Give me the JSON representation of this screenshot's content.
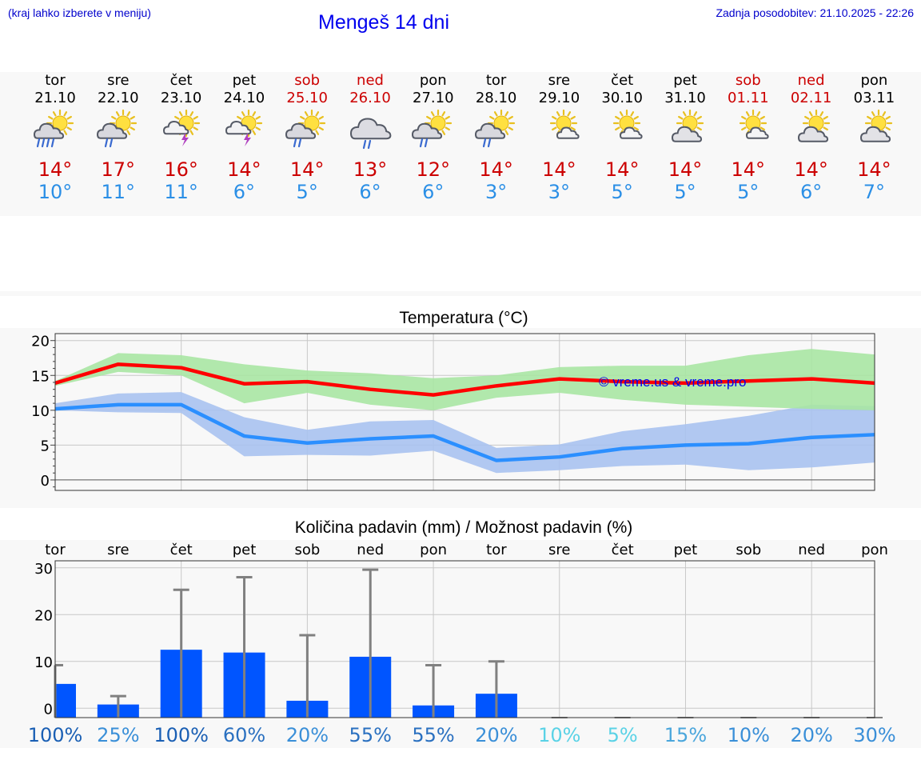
{
  "header": {
    "hint": "(kraj lahko izberete v meniju)",
    "title": "Mengeš 14 dni",
    "updated": "Zadnja posodobitev: 21.10.2025 - 22:26"
  },
  "days": [
    {
      "name": "tor",
      "date": "21.10",
      "weekend": false,
      "icon": "sun-cloud-heavy-rain-icon",
      "max": "14°",
      "min": "10°"
    },
    {
      "name": "sre",
      "date": "22.10",
      "weekend": false,
      "icon": "sun-cloud-rain-icon",
      "max": "17°",
      "min": "11°"
    },
    {
      "name": "čet",
      "date": "23.10",
      "weekend": false,
      "icon": "sun-thunderstorm-icon",
      "max": "16°",
      "min": "11°"
    },
    {
      "name": "pet",
      "date": "24.10",
      "weekend": false,
      "icon": "sun-thunderstorm-icon",
      "max": "14°",
      "min": "6°"
    },
    {
      "name": "sob",
      "date": "25.10",
      "weekend": true,
      "icon": "sun-cloud-rain-icon",
      "max": "14°",
      "min": "5°"
    },
    {
      "name": "ned",
      "date": "26.10",
      "weekend": true,
      "icon": "cloud-rain-icon",
      "max": "13°",
      "min": "6°"
    },
    {
      "name": "pon",
      "date": "27.10",
      "weekend": false,
      "icon": "sun-cloud-rain-icon",
      "max": "12°",
      "min": "6°"
    },
    {
      "name": "tor",
      "date": "28.10",
      "weekend": false,
      "icon": "sun-cloud-rain-icon",
      "max": "14°",
      "min": "3°"
    },
    {
      "name": "sre",
      "date": "29.10",
      "weekend": false,
      "icon": "sun-small-cloud-icon",
      "max": "14°",
      "min": "3°"
    },
    {
      "name": "čet",
      "date": "30.10",
      "weekend": false,
      "icon": "sun-small-cloud-icon",
      "max": "14°",
      "min": "5°"
    },
    {
      "name": "pet",
      "date": "31.10",
      "weekend": false,
      "icon": "sun-cloud-icon",
      "max": "14°",
      "min": "5°"
    },
    {
      "name": "sob",
      "date": "01.11",
      "weekend": true,
      "icon": "sun-small-cloud-icon",
      "max": "14°",
      "min": "5°"
    },
    {
      "name": "ned",
      "date": "02.11",
      "weekend": true,
      "icon": "sun-cloud-icon",
      "max": "14°",
      "min": "6°"
    },
    {
      "name": "pon",
      "date": "03.11",
      "weekend": false,
      "icon": "sun-cloud-icon",
      "max": "14°",
      "min": "7°"
    }
  ],
  "watermark": "© vreme.us & vreme.pro",
  "colors": {
    "max_line": "#ff0000",
    "max_band": "#a9e6a3",
    "min_line": "#2b8fff",
    "min_band": "#a8c2f0",
    "bar": "#0055ff",
    "whisker": "#808080",
    "weekend_text": "#cc0000"
  },
  "chart_data": [
    {
      "type": "line",
      "title": "Temperatura (°C)",
      "ylim": [
        -1.5,
        21
      ],
      "yticks": [
        0,
        5,
        10,
        15,
        20
      ],
      "grid": true,
      "x": [
        0,
        1,
        2,
        3,
        4,
        5,
        6,
        7,
        8,
        9,
        10,
        11,
        12,
        13
      ],
      "series": [
        {
          "values": [
            13.9,
            16.6,
            16.1,
            13.8,
            14.1,
            13.0,
            12.2,
            13.5,
            14.5,
            14.1,
            13.9,
            14.2,
            14.5,
            13.9
          ],
          "band_low": [
            13.5,
            15.5,
            15.0,
            11.0,
            12.5,
            10.8,
            10.0,
            11.8,
            12.5,
            11.5,
            10.8,
            10.5,
            10.2,
            10.0
          ],
          "band_high": [
            14.2,
            18.2,
            17.9,
            16.6,
            15.7,
            15.3,
            14.6,
            15.0,
            16.2,
            16.4,
            16.4,
            17.9,
            18.8,
            18.0
          ]
        },
        {
          "values": [
            10.2,
            10.8,
            10.8,
            6.3,
            5.3,
            5.9,
            6.3,
            2.8,
            3.3,
            4.5,
            5.0,
            5.2,
            6.1,
            6.5
          ],
          "band_low": [
            10.0,
            9.7,
            9.6,
            3.4,
            3.6,
            3.5,
            4.2,
            1.0,
            1.4,
            2.0,
            2.2,
            1.4,
            1.8,
            2.5
          ],
          "band_high": [
            11.0,
            12.4,
            12.6,
            9.0,
            7.2,
            8.4,
            8.6,
            4.6,
            5.1,
            7.0,
            8.0,
            9.2,
            10.8,
            10.6
          ]
        }
      ]
    },
    {
      "type": "bar",
      "title": "Količina padavin (mm) / Možnost padavin (%)",
      "ylim": [
        -2,
        31.5
      ],
      "yticks": [
        0,
        10,
        20,
        30
      ],
      "grid": true,
      "categories": [
        "tor",
        "sre",
        "čet",
        "pet",
        "sob",
        "ned",
        "pon",
        "tor",
        "sre",
        "čet",
        "pet",
        "sob",
        "ned",
        "pon"
      ],
      "values": [
        5.2,
        0.8,
        12.5,
        11.9,
        1.6,
        11.0,
        0.6,
        3.1,
        0,
        0,
        0,
        0,
        0,
        0
      ],
      "upper": [
        9.2,
        2.6,
        25.3,
        28.0,
        15.6,
        29.6,
        9.2,
        10.0,
        0,
        0,
        0,
        0,
        0,
        0
      ],
      "probability": [
        "100%",
        "25%",
        "100%",
        "60%",
        "20%",
        "55%",
        "55%",
        "20%",
        "10%",
        "5%",
        "15%",
        "10%",
        "20%",
        "30%"
      ],
      "probability_colors": [
        "#1a5fb4",
        "#3a8fd8",
        "#1a5fb4",
        "#2a70c0",
        "#3a8fd8",
        "#2a70c0",
        "#2a70c0",
        "#3a8fd8",
        "#5ad2e6",
        "#5ad2e6",
        "#4aa6dc",
        "#3a8fd8",
        "#3a8fd8",
        "#3a8fd8"
      ]
    }
  ]
}
